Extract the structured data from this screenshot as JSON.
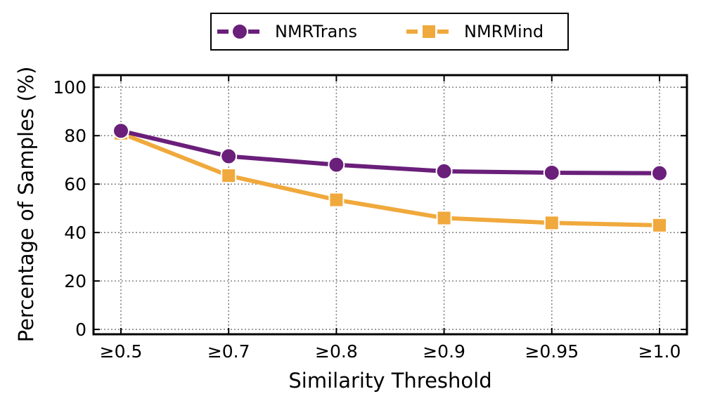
{
  "chart_data": {
    "type": "line",
    "categories": [
      "≥0.5",
      "≥0.7",
      "≥0.8",
      "≥0.9",
      "≥0.95",
      "≥1.0"
    ],
    "series": [
      {
        "name": "NMRTrans",
        "values": [
          82,
          71.5,
          68,
          65.3,
          64.7,
          64.5
        ],
        "color": "#6a1f7a",
        "marker": "circle"
      },
      {
        "name": "NMRMind",
        "values": [
          81,
          63.5,
          53.5,
          46,
          44,
          43
        ],
        "color": "#f0a93c",
        "marker": "square"
      }
    ],
    "title": "",
    "xlabel": "Similarity Threshold",
    "ylabel": "Percentage of Samples (%)",
    "ylim": [
      -2,
      105
    ],
    "yticks": [
      0,
      20,
      40,
      60,
      80,
      100
    ],
    "grid": true,
    "legend_position": "top-center"
  }
}
